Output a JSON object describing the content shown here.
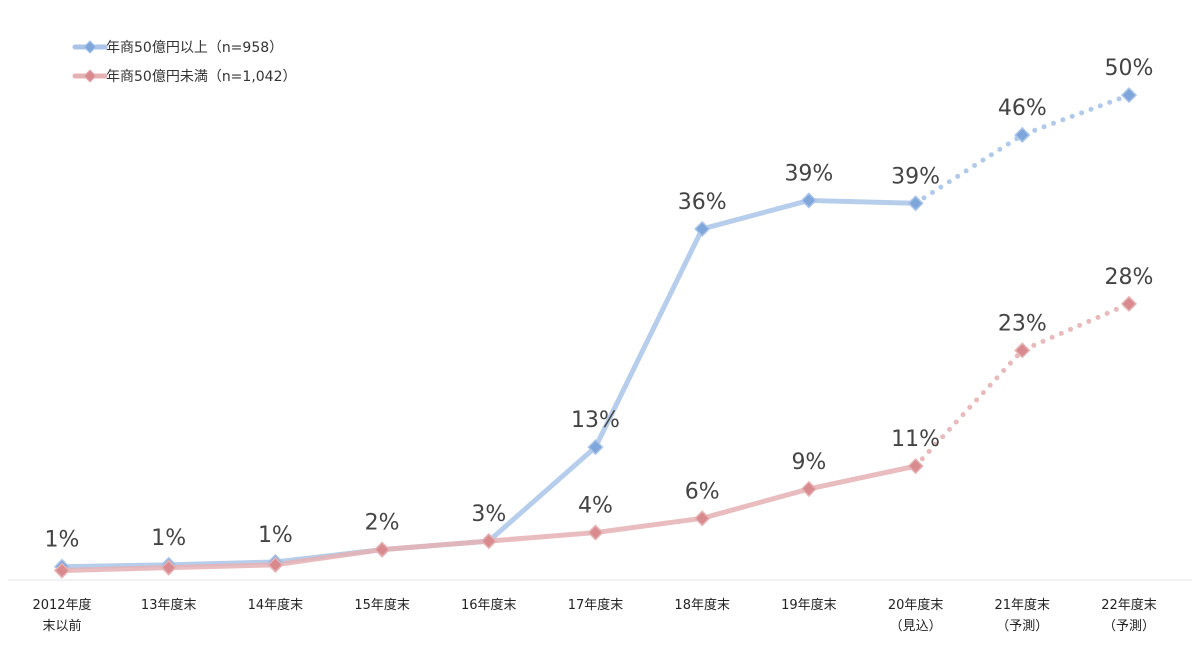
{
  "chart_data": {
    "type": "line",
    "categories": [
      [
        "2012年度",
        "末以前"
      ],
      [
        "13年度末"
      ],
      [
        "14年度末"
      ],
      [
        "15年度末"
      ],
      [
        "16年度末"
      ],
      [
        "17年度末"
      ],
      [
        "18年度末"
      ],
      [
        "19年度末"
      ],
      [
        "20年度末",
        "（見込）"
      ],
      [
        "21年度末",
        "（予測）"
      ],
      [
        "22年度末",
        "（予測）"
      ]
    ],
    "series": [
      {
        "name": "年商50億円以上（n=958）",
        "color": "#a9c4e8",
        "marker_color": "#7fa6db",
        "values": [
          0.6,
          0.8,
          1.1,
          2.4,
          3.3,
          13.2,
          36.2,
          39.2,
          38.9,
          46.1,
          50.3
        ],
        "labels": [
          "1%",
          "1%",
          "1%",
          "",
          "3%",
          "13%",
          "36%",
          "39%",
          "39%",
          "46%",
          "50%"
        ],
        "dashed_from_index": 8
      },
      {
        "name": "年商50億円未満（n=1,042）",
        "color": "#e5b2b4",
        "marker_color": "#d88a8e",
        "values": [
          0.2,
          0.5,
          0.8,
          2.4,
          3.3,
          4.2,
          5.7,
          8.8,
          11.2,
          23.4,
          28.3
        ],
        "labels": [
          "",
          "",
          "",
          "2%",
          "",
          "4%",
          "6%",
          "9%",
          "11%",
          "23%",
          "28%"
        ],
        "dashed_from_index": 8
      }
    ],
    "ylim": [
      -0.8,
      54
    ],
    "grid": false,
    "legend_position": "top-left"
  }
}
